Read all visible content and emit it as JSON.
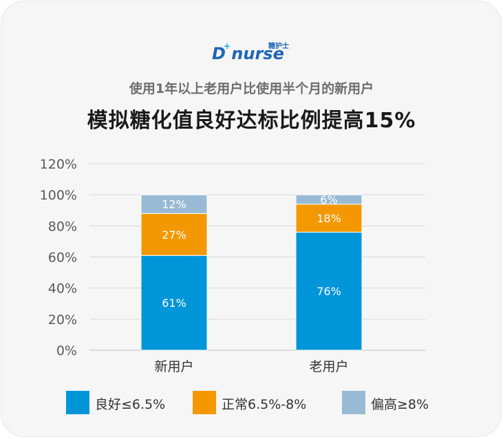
{
  "logo": {
    "main": "D nurse",
    "plus": "+",
    "cn": "糖护士"
  },
  "subtitle": "使用1年以上老用户比使用半个月的新用户",
  "title": "模拟糖化值良好达标比例提高15%",
  "colors": {
    "good": "#0095d9",
    "normal": "#f39800",
    "high": "#98bad4",
    "grid": "#d9d9d9",
    "axis_text": "#595959"
  },
  "chart_data": {
    "type": "bar",
    "stacked": true,
    "categories": [
      "新用户",
      "老用户"
    ],
    "series": [
      {
        "name": "良好≤6.5%",
        "values": [
          61,
          76
        ],
        "labels": [
          "61%",
          "76%"
        ]
      },
      {
        "name": "正常6.5%-8%",
        "values": [
          27,
          18
        ],
        "labels": [
          "27%",
          "18%"
        ]
      },
      {
        "name": "偏高≥8%",
        "values": [
          12,
          6
        ],
        "labels": [
          "12%",
          "6%"
        ]
      }
    ],
    "ylim": [
      0,
      120
    ],
    "yticks": [
      "0%",
      "20%",
      "40%",
      "60%",
      "80%",
      "100%",
      "120%"
    ],
    "grid": true,
    "legend_position": "bottom"
  }
}
